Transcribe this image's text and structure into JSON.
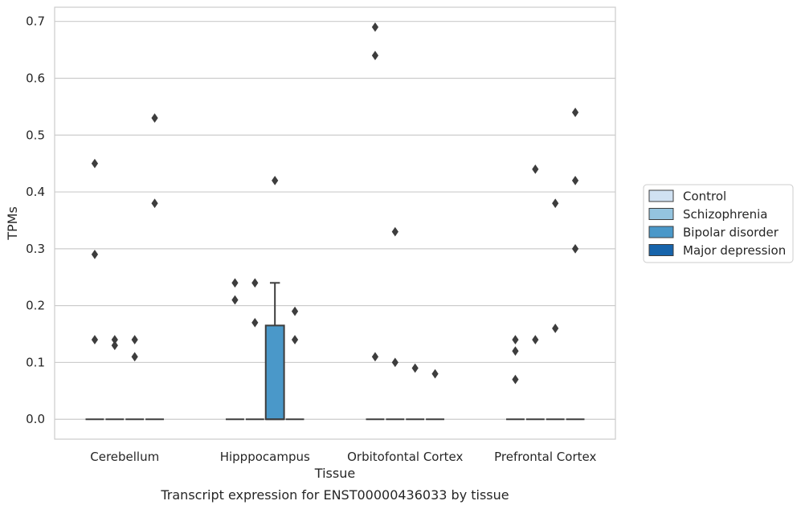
{
  "caption": "Transcript expression for ENST00000436033 by tissue",
  "chart_data": {
    "type": "box",
    "xlabel": "Tissue",
    "ylabel": "TPMs",
    "categories": [
      "Cerebellum",
      "Hipppocampus",
      "Orbitofontal Cortex",
      "Prefrontal Cortex"
    ],
    "ylim": [
      -0.035,
      0.725
    ],
    "yticks": [
      0.0,
      0.1,
      0.2,
      0.3,
      0.4,
      0.5,
      0.6,
      0.7
    ],
    "ytick_labels": [
      "0.0",
      "0.1",
      "0.2",
      "0.3",
      "0.4",
      "0.5",
      "0.6",
      "0.7"
    ],
    "grid": "horizontal",
    "legend_position": "right",
    "series": [
      {
        "name": "Control",
        "color": "#d0e1f2",
        "boxes": [
          {
            "category": "Cerebellum",
            "q1": 0,
            "median": 0,
            "q3": 0,
            "whisker_low": 0,
            "whisker_high": 0,
            "outliers": [
              0.45,
              0.29,
              0.14
            ]
          },
          {
            "category": "Hipppocampus",
            "q1": 0,
            "median": 0,
            "q3": 0,
            "whisker_low": 0,
            "whisker_high": 0,
            "outliers": [
              0.24,
              0.21
            ]
          },
          {
            "category": "Orbitofontal Cortex",
            "q1": 0,
            "median": 0,
            "q3": 0,
            "whisker_low": 0,
            "whisker_high": 0,
            "outliers": [
              0.69,
              0.64,
              0.11
            ]
          },
          {
            "category": "Prefrontal Cortex",
            "q1": 0,
            "median": 0,
            "q3": 0,
            "whisker_low": 0,
            "whisker_high": 0,
            "outliers": [
              0.14,
              0.12,
              0.07
            ]
          }
        ]
      },
      {
        "name": "Schizophrenia",
        "color": "#94c4df",
        "boxes": [
          {
            "category": "Cerebellum",
            "q1": 0,
            "median": 0,
            "q3": 0,
            "whisker_low": 0,
            "whisker_high": 0,
            "outliers": [
              0.14,
              0.13
            ]
          },
          {
            "category": "Hipppocampus",
            "q1": 0,
            "median": 0,
            "q3": 0,
            "whisker_low": 0,
            "whisker_high": 0,
            "outliers": [
              0.24,
              0.17
            ]
          },
          {
            "category": "Orbitofontal Cortex",
            "q1": 0,
            "median": 0,
            "q3": 0,
            "whisker_low": 0,
            "whisker_high": 0,
            "outliers": [
              0.33,
              0.1
            ]
          },
          {
            "category": "Prefrontal Cortex",
            "q1": 0,
            "median": 0,
            "q3": 0,
            "whisker_low": 0,
            "whisker_high": 0,
            "outliers": [
              0.44,
              0.14
            ]
          }
        ]
      },
      {
        "name": "Bipolar disorder",
        "color": "#4a98c9",
        "boxes": [
          {
            "category": "Cerebellum",
            "q1": 0,
            "median": 0,
            "q3": 0,
            "whisker_low": 0,
            "whisker_high": 0,
            "outliers": [
              0.14,
              0.11
            ]
          },
          {
            "category": "Hipppocampus",
            "q1": 0,
            "median": 0,
            "q3": 0.165,
            "whisker_low": 0,
            "whisker_high": 0.24,
            "outliers": [
              0.42
            ]
          },
          {
            "category": "Orbitofontal Cortex",
            "q1": 0,
            "median": 0,
            "q3": 0,
            "whisker_low": 0,
            "whisker_high": 0,
            "outliers": [
              0.09
            ]
          },
          {
            "category": "Prefrontal Cortex",
            "q1": 0,
            "median": 0,
            "q3": 0,
            "whisker_low": 0,
            "whisker_high": 0,
            "outliers": [
              0.38,
              0.16
            ]
          }
        ]
      },
      {
        "name": "Major depression",
        "color": "#1764ab",
        "boxes": [
          {
            "category": "Cerebellum",
            "q1": 0,
            "median": 0,
            "q3": 0,
            "whisker_low": 0,
            "whisker_high": 0,
            "outliers": [
              0.53,
              0.38
            ]
          },
          {
            "category": "Hipppocampus",
            "q1": 0,
            "median": 0,
            "q3": 0,
            "whisker_low": 0,
            "whisker_high": 0,
            "outliers": [
              0.19,
              0.14
            ]
          },
          {
            "category": "Orbitofontal Cortex",
            "q1": 0,
            "median": 0,
            "q3": 0,
            "whisker_low": 0,
            "whisker_high": 0,
            "outliers": [
              0.08
            ]
          },
          {
            "category": "Prefrontal Cortex",
            "q1": 0,
            "median": 0,
            "q3": 0,
            "whisker_low": 0,
            "whisker_high": 0,
            "outliers": [
              0.54,
              0.42,
              0.3
            ]
          }
        ]
      }
    ]
  }
}
